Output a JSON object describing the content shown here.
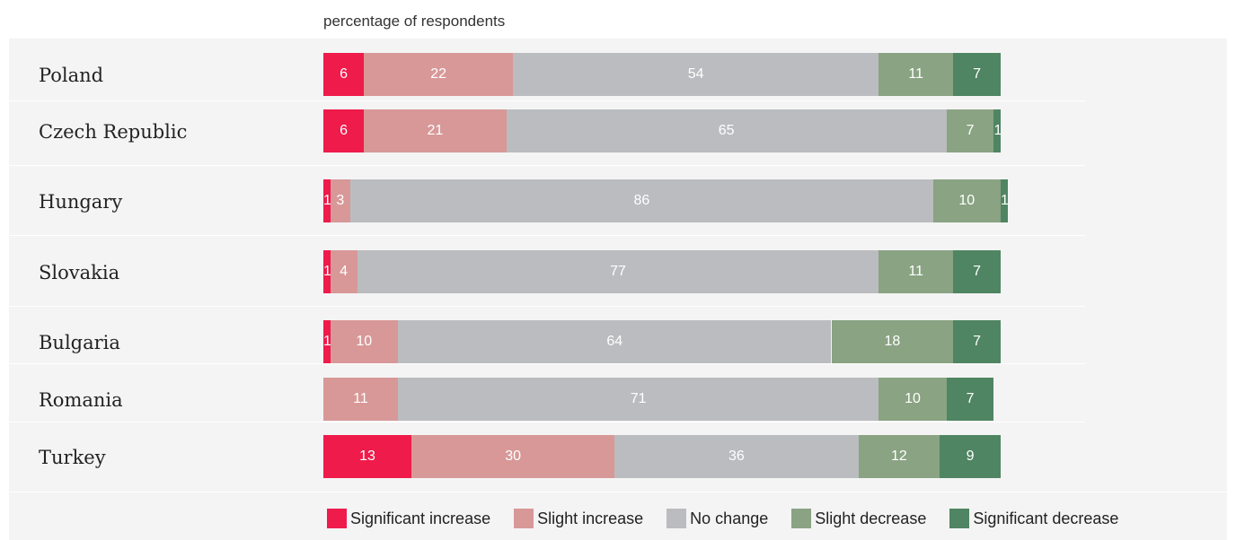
{
  "chart_data": {
    "type": "bar",
    "orientation": "horizontal",
    "stacked": true,
    "subtitle": "percentage of respondents",
    "categories": [
      "Poland",
      "Czech Republic",
      "Hungary",
      "Slovakia",
      "Bulgaria",
      "Romania",
      "Turkey"
    ],
    "series": [
      {
        "name": "Significant increase",
        "color": "#ee1b4b",
        "values": [
          6,
          6,
          1,
          1,
          1,
          0,
          13
        ]
      },
      {
        "name": "Slight increase",
        "color": "#d89898",
        "values": [
          22,
          21,
          3,
          4,
          10,
          11,
          30
        ]
      },
      {
        "name": "No change",
        "color": "#bbbcbf",
        "values": [
          54,
          65,
          86,
          77,
          64,
          71,
          36
        ]
      },
      {
        "name": "Slight decrease",
        "color": "#8aa383",
        "values": [
          11,
          7,
          10,
          11,
          18,
          10,
          12
        ]
      },
      {
        "name": "Significant decrease",
        "color": "#4f8562",
        "values": [
          7,
          1,
          1,
          7,
          7,
          7,
          9
        ]
      }
    ],
    "legend_position": "bottom",
    "grid": false
  }
}
